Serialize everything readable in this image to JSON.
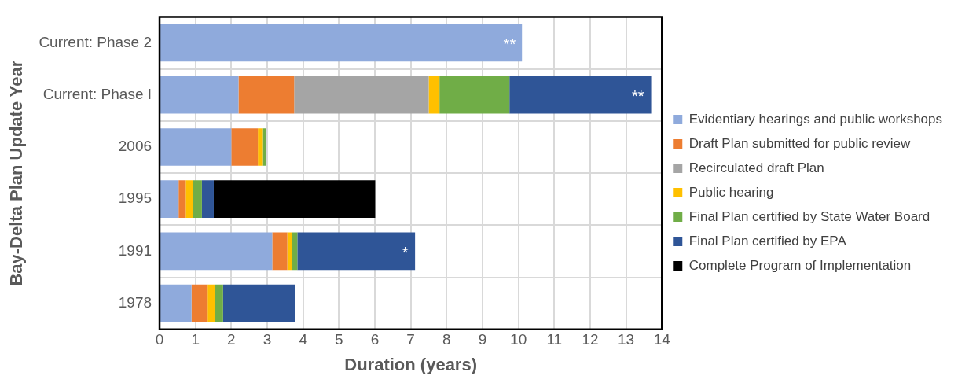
{
  "chart_data": {
    "type": "bar",
    "orientation": "horizontal",
    "stacked": true,
    "xlabel": "Duration (years)",
    "ylabel": "Bay-Delta Plan Update Year",
    "categories": [
      "Current: Phase 2",
      "Current: Phase I",
      "2006",
      "1995",
      "1991",
      "1978"
    ],
    "series": [
      {
        "name": "Evidentiary hearings and public workshops",
        "color": "#8faadc",
        "values": [
          10.1,
          2.2,
          2.0,
          0.53,
          3.14,
          0.89
        ]
      },
      {
        "name": "Draft Plan submitted for public review",
        "color": "#ed7d31",
        "values": [
          null,
          1.55,
          0.74,
          0.2,
          0.42,
          0.45
        ]
      },
      {
        "name": "Recirculated draft Plan",
        "color": "#a5a5a5",
        "values": [
          null,
          3.75,
          null,
          null,
          null,
          null
        ]
      },
      {
        "name": "Public hearing",
        "color": "#ffc000",
        "values": [
          null,
          0.3,
          0.14,
          0.2,
          0.14,
          0.2
        ]
      },
      {
        "name": "Final Plan certified by State Water Board",
        "color": "#70ad47",
        "values": [
          null,
          1.95,
          0.08,
          0.25,
          0.14,
          0.23
        ]
      },
      {
        "name": "Final Plan certified by EPA",
        "color": "#2f5597",
        "values": [
          null,
          3.95,
          null,
          0.33,
          3.28,
          2.01
        ]
      },
      {
        "name": "Complete Program of Implementation",
        "color": "#000000",
        "values": [
          null,
          null,
          null,
          4.5,
          null,
          null
        ]
      }
    ],
    "xlim": [
      0,
      14
    ],
    "xticks": [
      0,
      1,
      2,
      3,
      4,
      5,
      6,
      7,
      8,
      9,
      10,
      11,
      12,
      13,
      14
    ],
    "grid": true,
    "legend": "right",
    "annotations": [
      {
        "text": "**",
        "x": 10.1,
        "y": "Current: Phase 2"
      },
      {
        "text": "**",
        "x": 13.68,
        "y": "Current: Phase I"
      },
      {
        "text": "*",
        "x": 7.11,
        "y": "1991"
      }
    ]
  }
}
